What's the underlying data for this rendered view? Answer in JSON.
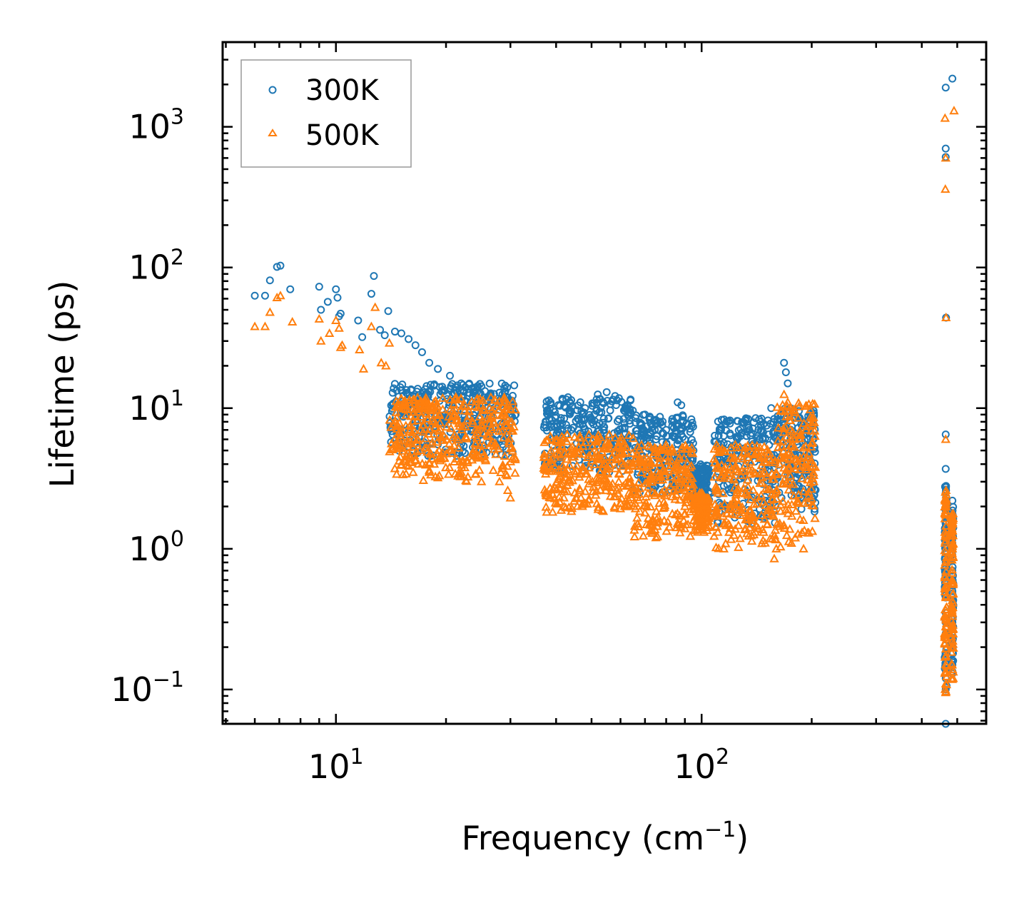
{
  "chart_data": {
    "type": "scatter",
    "title": "",
    "xlabel": "Frequency (cm",
    "xlabel_sup": "−1",
    "xlabel_suffix": ")",
    "ylabel": "Lifetime (ps)",
    "xscale": "log",
    "yscale": "log",
    "xlim": [
      4.9,
      600
    ],
    "ylim": [
      0.057,
      4000
    ],
    "x_ticks": [
      {
        "value": 10,
        "base": "10",
        "exp": "1"
      },
      {
        "value": 100,
        "base": "10",
        "exp": "2"
      }
    ],
    "y_ticks": [
      {
        "value": 0.1,
        "base": "10",
        "exp": "−1"
      },
      {
        "value": 1,
        "base": "10",
        "exp": "0"
      },
      {
        "value": 10,
        "base": "10",
        "exp": "1"
      },
      {
        "value": 100,
        "base": "10",
        "exp": "2"
      },
      {
        "value": 1000,
        "base": "10",
        "exp": "3"
      }
    ],
    "legend": {
      "location": "top-left",
      "entries": [
        {
          "label": "300K",
          "marker": "circle",
          "color": "#1f77b4"
        },
        {
          "label": "500K",
          "marker": "triangle",
          "color": "#ff7f0e"
        }
      ]
    },
    "series": [
      {
        "name": "300K",
        "marker": "circle",
        "color": "#1f77b4",
        "points": [
          [
            6.0,
            63
          ],
          [
            6.4,
            63
          ],
          [
            6.6,
            81
          ],
          [
            6.9,
            101
          ],
          [
            7.05,
            103
          ],
          [
            7.5,
            70
          ],
          [
            9.0,
            73
          ],
          [
            9.1,
            50
          ],
          [
            9.5,
            57
          ],
          [
            10.0,
            70
          ],
          [
            10.1,
            61
          ],
          [
            10.2,
            45
          ],
          [
            10.3,
            47
          ],
          [
            11.5,
            42
          ],
          [
            11.8,
            32
          ],
          [
            12.5,
            65
          ],
          [
            12.7,
            87
          ],
          [
            13.2,
            36
          ],
          [
            13.6,
            33
          ],
          [
            13.9,
            49
          ],
          [
            14.5,
            35
          ],
          [
            15.1,
            34
          ],
          [
            15.8,
            31
          ],
          [
            16.5,
            28
          ],
          [
            17.2,
            25
          ],
          [
            18.0,
            21
          ],
          [
            19.0,
            19
          ],
          [
            20.5,
            17
          ],
          [
            22.0,
            15
          ],
          [
            24.0,
            13
          ],
          [
            26.0,
            12
          ],
          [
            28.0,
            11
          ],
          [
            30.5,
            10
          ],
          [
            31.0,
            9
          ],
          [
            38,
            9
          ],
          [
            40,
            8.8
          ],
          [
            44,
            7.0
          ],
          [
            48,
            10
          ],
          [
            52,
            12.5
          ],
          [
            55,
            13
          ],
          [
            58,
            12.2
          ],
          [
            62,
            10
          ],
          [
            66,
            8.5
          ],
          [
            70,
            9
          ],
          [
            72,
            8.3
          ],
          [
            75,
            6
          ],
          [
            80,
            7
          ],
          [
            84,
            8
          ],
          [
            86,
            11
          ],
          [
            88,
            10.5
          ],
          [
            90,
            6
          ],
          [
            95,
            5
          ],
          [
            100,
            3.5
          ],
          [
            106,
            2.5
          ],
          [
            115,
            2.8
          ],
          [
            125,
            5
          ],
          [
            135,
            7
          ],
          [
            145,
            8
          ],
          [
            155,
            10
          ],
          [
            160,
            7.2
          ],
          [
            168,
            21
          ],
          [
            170,
            18
          ],
          [
            172,
            15
          ],
          [
            175,
            10
          ],
          [
            180,
            8.5
          ],
          [
            185,
            6.5
          ],
          [
            190,
            8
          ],
          [
            195,
            7
          ],
          [
            200,
            6.5
          ],
          [
            465,
            1900
          ],
          [
            485,
            2200
          ],
          [
            465,
            700
          ],
          [
            465,
            610
          ],
          [
            466,
            44
          ],
          [
            465,
            6.5
          ],
          [
            465,
            3.7
          ],
          [
            466,
            2.8
          ],
          [
            465,
            2.5
          ],
          [
            485,
            2.2
          ],
          [
            485,
            1.6
          ],
          [
            485,
            1.0
          ],
          [
            465,
            1.5
          ],
          [
            465,
            1.2
          ],
          [
            466,
            0.95
          ],
          [
            465,
            0.8
          ],
          [
            485,
            0.7
          ],
          [
            465,
            0.6
          ],
          [
            485,
            0.5
          ],
          [
            465,
            0.45
          ],
          [
            465,
            0.35
          ],
          [
            485,
            0.3
          ],
          [
            465,
            0.25
          ],
          [
            485,
            0.22
          ],
          [
            465,
            0.18
          ],
          [
            485,
            0.15
          ],
          [
            465,
            0.12
          ],
          [
            485,
            0.13
          ],
          [
            465,
            0.1
          ],
          [
            465,
            0.057
          ]
        ],
        "clusters": [
          {
            "x": [
              14.0,
              31.0
            ],
            "y": [
              4.5,
              15
            ]
          },
          {
            "x": [
              37.0,
              65.0
            ],
            "y": [
              3.5,
              12
            ]
          },
          {
            "x": [
              65.0,
              95.0
            ],
            "y": [
              2.5,
              9
            ]
          },
          {
            "x": [
              95.0,
              105.0
            ],
            "y": [
              2.0,
              4.0
            ]
          },
          {
            "x": [
              108.0,
              160.0
            ],
            "y": [
              1.5,
              8.5
            ]
          },
          {
            "x": [
              160.0,
              205.0
            ],
            "y": [
              1.8,
              10
            ]
          },
          {
            "x": [
              462.0,
              468.0
            ],
            "y": [
              0.1,
              2.8
            ]
          },
          {
            "x": [
              482.0,
              488.0
            ],
            "y": [
              0.12,
              2.0
            ]
          }
        ]
      },
      {
        "name": "500K",
        "marker": "triangle",
        "color": "#ff7f0e",
        "points": [
          [
            6.0,
            38
          ],
          [
            6.4,
            38
          ],
          [
            6.6,
            48
          ],
          [
            6.9,
            61
          ],
          [
            7.05,
            63
          ],
          [
            7.6,
            41
          ],
          [
            9.0,
            43
          ],
          [
            9.1,
            30
          ],
          [
            9.6,
            34
          ],
          [
            10.0,
            42
          ],
          [
            10.2,
            37
          ],
          [
            10.3,
            27
          ],
          [
            10.4,
            28
          ],
          [
            11.6,
            26
          ],
          [
            11.9,
            19
          ],
          [
            12.5,
            38
          ],
          [
            12.8,
            52
          ],
          [
            13.3,
            21
          ],
          [
            13.7,
            20
          ],
          [
            14.0,
            29
          ],
          [
            14.5,
            5.5
          ],
          [
            15.0,
            4.5
          ],
          [
            15.5,
            4.2
          ],
          [
            16.0,
            4.5
          ],
          [
            16.8,
            4.0
          ],
          [
            18.0,
            3.5
          ],
          [
            19.0,
            3.2
          ],
          [
            22.0,
            3.5
          ],
          [
            25.0,
            3.0
          ],
          [
            28.0,
            3.0
          ],
          [
            29.5,
            2.6
          ],
          [
            30.0,
            2.3
          ],
          [
            45,
            2.5
          ],
          [
            48,
            2.1
          ],
          [
            55,
            3.5
          ],
          [
            70,
            1.8
          ],
          [
            72,
            1.5
          ],
          [
            75,
            1.2
          ],
          [
            80,
            2.5
          ],
          [
            90,
            2.0
          ],
          [
            95,
            1.9
          ],
          [
            110,
            1.8
          ],
          [
            115,
            1.0
          ],
          [
            120,
            1.4
          ],
          [
            158,
            0.85
          ],
          [
            160,
            1.0
          ],
          [
            168,
            12.5
          ],
          [
            172,
            11
          ],
          [
            180,
            6
          ],
          [
            190,
            1.0
          ],
          [
            195,
            1.3
          ],
          [
            463,
            1150
          ],
          [
            490,
            1300
          ],
          [
            464,
            360
          ],
          [
            465,
            600
          ],
          [
            466,
            44
          ],
          [
            465,
            6.0
          ],
          [
            466,
            2.6
          ],
          [
            465,
            2.0
          ],
          [
            486,
            1.5
          ],
          [
            485,
            1.0
          ],
          [
            465,
            0.8
          ],
          [
            485,
            0.6
          ],
          [
            465,
            0.45
          ],
          [
            485,
            0.35
          ],
          [
            465,
            0.28
          ],
          [
            485,
            0.2
          ],
          [
            465,
            0.15
          ],
          [
            485,
            0.12
          ],
          [
            465,
            0.095
          ]
        ],
        "clusters": [
          {
            "x": [
              14.0,
              31.0
            ],
            "y": [
              3.0,
              12
            ]
          },
          {
            "x": [
              37.0,
              65.0
            ],
            "y": [
              1.8,
              6.5
            ]
          },
          {
            "x": [
              65.0,
              95.0
            ],
            "y": [
              1.2,
              5.5
            ]
          },
          {
            "x": [
              95.0,
              105.0
            ],
            "y": [
              1.3,
              2.5
            ]
          },
          {
            "x": [
              108.0,
              160.0
            ],
            "y": [
              1.0,
              5.5
            ]
          },
          {
            "x": [
              160.0,
              205.0
            ],
            "y": [
              1.0,
              11
            ]
          },
          {
            "x": [
              462.0,
              468.0
            ],
            "y": [
              0.09,
              2.6
            ]
          },
          {
            "x": [
              482.0,
              488.0
            ],
            "y": [
              0.11,
              1.8
            ]
          }
        ]
      }
    ]
  }
}
